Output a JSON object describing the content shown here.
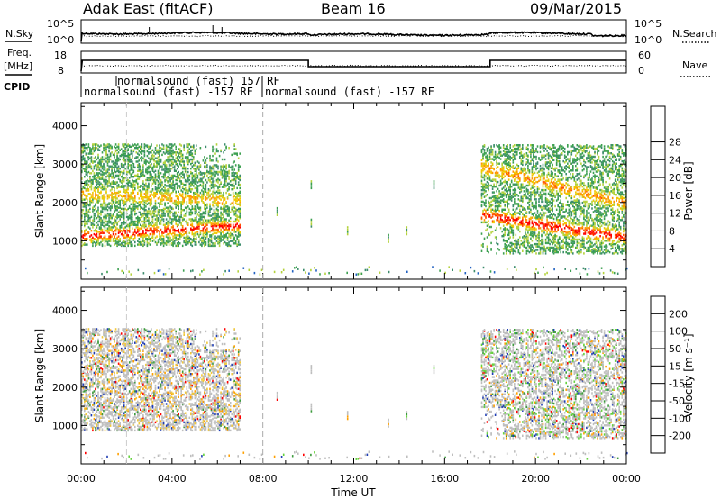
{
  "header": {
    "station": "Adak East (fitACF)",
    "beam": "Beam 16",
    "date": "09/Mar/2015"
  },
  "noise_panel": {
    "left_label": "N.Sky",
    "right_label": "N.Search",
    "ticks_left": [
      "10^5",
      "10^0"
    ],
    "ticks_right": [
      "10^5",
      "10^0"
    ]
  },
  "freq_panel": {
    "left_label_line1": "Freq.",
    "left_label_line2": "[MHz]",
    "right_label": "Nave",
    "ticks_left": [
      "18",
      "8"
    ],
    "ticks_right": [
      "60",
      "0"
    ]
  },
  "cpid": {
    "label": "CPID",
    "segments": [
      {
        "start": 0.0,
        "end": 8.0,
        "text": "normalsound (fast) -157 RF"
      },
      {
        "start": 8.0,
        "end": 24.0,
        "text": "normalsound (fast) -157 RF"
      }
    ],
    "upper_text": "normalsound (fast) 157 RF",
    "upper_start": 2.0
  },
  "colors": {
    "power": [
      "#0000ff",
      "#2060c0",
      "#3c8c6c",
      "#3ca050",
      "#b4d23c",
      "#f0c800",
      "#ff9600",
      "#ff5000",
      "#ff0000"
    ],
    "velocity_pos": [
      "#1e3cb4",
      "#2a6e6e",
      "#3c9b3c",
      "#64d23c"
    ],
    "velocity_neu": "#bebebe",
    "velocity_neg": [
      "#f0c83c",
      "#ffa000",
      "#ff6400",
      "#ff0000"
    ]
  },
  "chart_data": [
    {
      "type": "heatmap",
      "name": "power",
      "xlabel": "",
      "ylabel": "Slant Range [km]",
      "xlim": [
        0,
        24
      ],
      "ylim": [
        0,
        4600
      ],
      "yticks": [
        1000,
        2000,
        3000,
        4000
      ],
      "colorbar": {
        "label": "Power [dB]",
        "ticks": [
          "4",
          "8",
          "12",
          "16",
          "20",
          "24",
          "28"
        ]
      }
    },
    {
      "type": "heatmap",
      "name": "velocity",
      "xlabel": "Time UT",
      "ylabel": "Slant Range [km]",
      "xlim": [
        0,
        24
      ],
      "ylim": [
        0,
        4600
      ],
      "yticks": [
        1000,
        2000,
        3000,
        4000
      ],
      "xticks": [
        "00:00",
        "04:00",
        "08:00",
        "12:00",
        "16:00",
        "20:00",
        "00:00"
      ],
      "colorbar": {
        "label": "Velocity [m s⁻¹]",
        "ticks": [
          "200",
          "100",
          "50",
          "15",
          "-15",
          "-50",
          "-100",
          "-200"
        ]
      }
    }
  ]
}
